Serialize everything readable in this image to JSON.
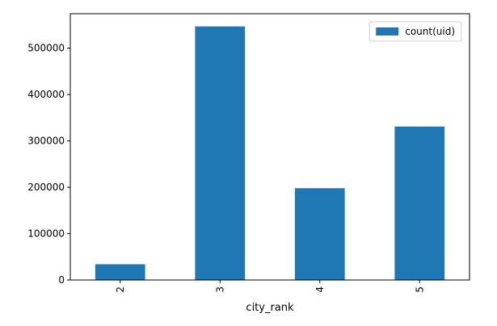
{
  "chart_data": {
    "type": "bar",
    "categories": [
      "2",
      "3",
      "4",
      "5"
    ],
    "series": [
      {
        "name": "count(uid)",
        "values": [
          34000,
          547000,
          198000,
          331000
        ]
      }
    ],
    "xlabel": "city_rank",
    "ylabel": "",
    "ylim": [
      0,
      574350
    ],
    "yticks": [
      0,
      100000,
      200000,
      300000,
      400000,
      500000
    ],
    "ytick_labels": [
      "0",
      "100000",
      "200000",
      "300000",
      "400000",
      "500000"
    ],
    "legend_placement": "top-right",
    "grid": false,
    "bar_color": "#1f77b4"
  }
}
